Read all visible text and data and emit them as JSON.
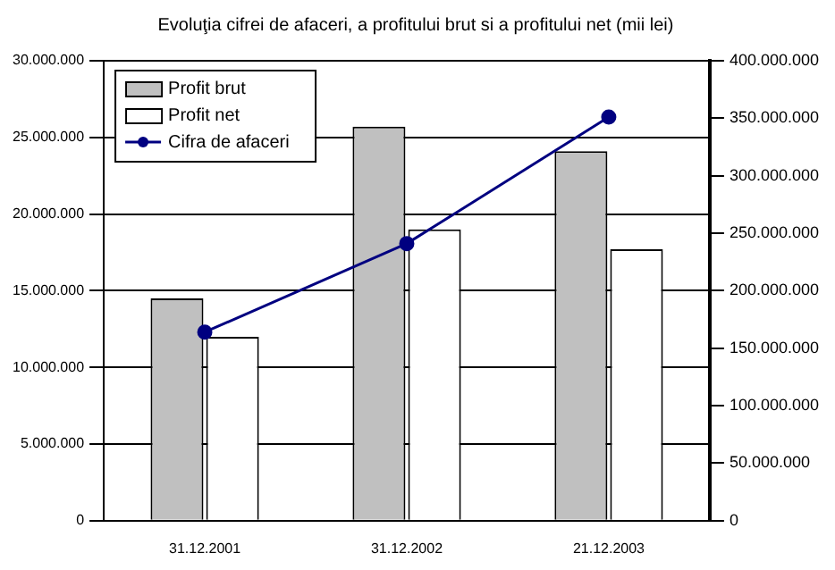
{
  "chart_data": {
    "type": "bar",
    "title": "Evoluţia cifrei de afaceri, a profitului brut si a profitului net (mii lei)",
    "categories": [
      "31.12.2001",
      "31.12.2002",
      "21.12.2003"
    ],
    "series": [
      {
        "name": "Profit brut",
        "color": "#c0c0c0",
        "values": [
          14500000,
          25700000,
          24100000
        ]
      },
      {
        "name": "Profit net",
        "color": "#ffffff",
        "values": [
          12000000,
          19000000,
          17700000
        ]
      },
      {
        "name": "Cifra de afaceri",
        "type": "line",
        "axis": "y2",
        "color": "#000080",
        "values": [
          164000000,
          241000000,
          351000000
        ]
      }
    ],
    "ylim": [
      0,
      30000000
    ],
    "yticks": [
      {
        "value": 0,
        "label": "0"
      },
      {
        "value": 5000000,
        "label": "5.000.000"
      },
      {
        "value": 10000000,
        "label": "10.000.000"
      },
      {
        "value": 15000000,
        "label": "15.000.000"
      },
      {
        "value": 20000000,
        "label": "20.000.000"
      },
      {
        "value": 25000000,
        "label": "25.000.000"
      },
      {
        "value": 30000000,
        "label": "30.000.000"
      }
    ],
    "y2lim": [
      0,
      400000000
    ],
    "y2ticks": [
      {
        "value": 0,
        "label": "0"
      },
      {
        "value": 50000000,
        "label": "50.000.000"
      },
      {
        "value": 100000000,
        "label": "100.000.000"
      },
      {
        "value": 150000000,
        "label": "150.000.000"
      },
      {
        "value": 200000000,
        "label": "200.000.000"
      },
      {
        "value": 250000000,
        "label": "250.000.000"
      },
      {
        "value": 300000000,
        "label": "300.000.000"
      },
      {
        "value": 350000000,
        "label": "350.000.000"
      },
      {
        "value": 400000000,
        "label": "400.000.000"
      }
    ],
    "grid": "y",
    "legend": "top left",
    "marker": "circle",
    "line_style": "solid"
  }
}
